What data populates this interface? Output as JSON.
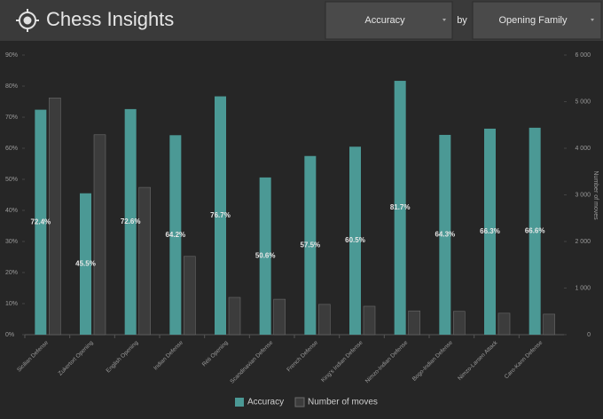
{
  "header": {
    "title": "Chess Insights",
    "metric": "Accuracy",
    "by": "by",
    "group": "Opening Family"
  },
  "chart_data": {
    "type": "bar",
    "categories": [
      "Sicilian Defense",
      "Zukertort Opening",
      "English Opening",
      "Indian Defense",
      "Réti Opening",
      "Scandinavian Defense",
      "French Defense",
      "King's Indian Defense",
      "Nimzo-Indian Defense",
      "Bogo-Indian Defense",
      "Nimzo-Larsen Attack",
      "Caro-Kann Defense"
    ],
    "series": [
      {
        "name": "Accuracy",
        "color": "#4b9995",
        "values": [
          72.4,
          45.5,
          72.6,
          64.2,
          76.7,
          50.6,
          57.5,
          60.5,
          81.7,
          64.3,
          66.3,
          66.6
        ],
        "value_labels": [
          "72.4%",
          "45.5%",
          "72.6%",
          "64.2%",
          "76.7%",
          "50.6%",
          "57.5%",
          "60.5%",
          "81.7%",
          "64.3%",
          "66.3%",
          "66.6%"
        ]
      },
      {
        "name": "Number of moves",
        "color": "#3c3c3c",
        "axis": "y2",
        "values": [
          5080,
          4290,
          3160,
          1680,
          800,
          760,
          650,
          610,
          510,
          500,
          460,
          440
        ]
      }
    ],
    "ylim": [
      0,
      90
    ],
    "yticks": [
      {
        "value": 0,
        "label": "0%"
      },
      {
        "value": 10,
        "label": "10%"
      },
      {
        "value": 20,
        "label": "20%"
      },
      {
        "value": 30,
        "label": "30%"
      },
      {
        "value": 40,
        "label": "40%"
      },
      {
        "value": 50,
        "label": "50%"
      },
      {
        "value": 60,
        "label": "60%"
      },
      {
        "value": 70,
        "label": "70%"
      },
      {
        "value": 80,
        "label": "80%"
      },
      {
        "value": 90,
        "label": "90%"
      }
    ],
    "y2lim": [
      0,
      6000
    ],
    "y2ticks": [
      0,
      {
        "value": 1000,
        "label": "1 000"
      },
      {
        "value": 2000,
        "label": "2 000"
      },
      {
        "value": 3000,
        "label": "3 000"
      },
      {
        "value": 4000,
        "label": "4 000"
      },
      {
        "value": 5000,
        "label": "5 000"
      },
      {
        "value": 6000,
        "label": "6 000"
      }
    ],
    "y2_label": "Number of moves",
    "legend": "bottom"
  }
}
